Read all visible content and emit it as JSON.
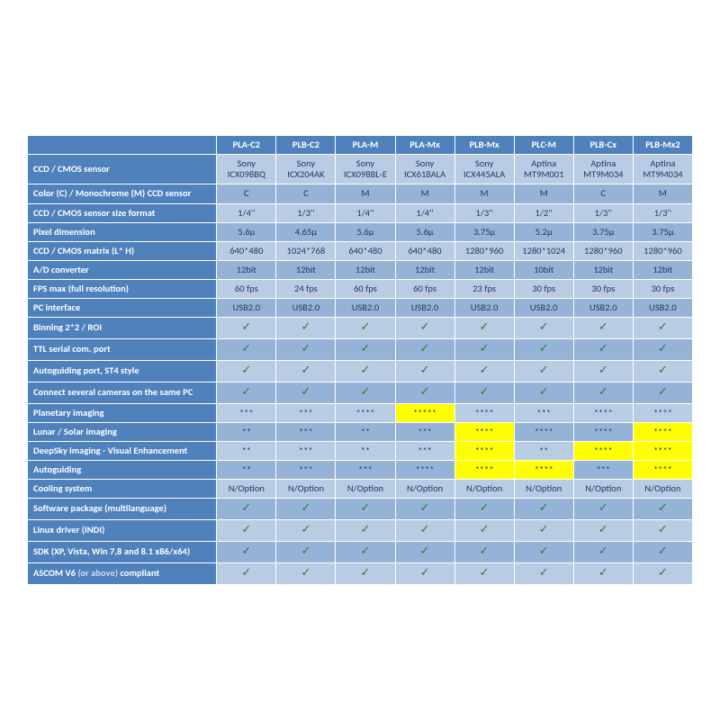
{
  "columns": [
    "PLA-C2",
    "PLB-C2",
    "PLA-M",
    "PLA-Mx",
    "PLB-Mx",
    "PLC-M",
    "PLB-Cx",
    "PLB-Mx2"
  ],
  "check": "✓",
  "rows": [
    {
      "label": "CCD / CMOS sensor",
      "shade": "lt",
      "cells": [
        {
          "t": "Sony ICX098BQ"
        },
        {
          "t": "Sony ICX204AK"
        },
        {
          "t": "Sony ICX098BL-E"
        },
        {
          "t": "Sony ICX618ALA"
        },
        {
          "t": "Sony ICX445ALA"
        },
        {
          "t": "Aptina MT9M001"
        },
        {
          "t": "Aptina MT9M034"
        },
        {
          "t": "Aptina MT9M034"
        }
      ]
    },
    {
      "label": "Color (C) / Monochrome (M) CCD sensor",
      "shade": "dk",
      "cells": [
        {
          "t": "C"
        },
        {
          "t": "C"
        },
        {
          "t": "M"
        },
        {
          "t": "M"
        },
        {
          "t": "M"
        },
        {
          "t": "M"
        },
        {
          "t": "C"
        },
        {
          "t": "M"
        }
      ]
    },
    {
      "label": "CCD / CMOS sensor size format",
      "shade": "lt",
      "cells": [
        {
          "t": "1/4''"
        },
        {
          "t": "1/3''"
        },
        {
          "t": "1/4''"
        },
        {
          "t": "1/4''"
        },
        {
          "t": "1/3''"
        },
        {
          "t": "1/2''"
        },
        {
          "t": "1/3''"
        },
        {
          "t": "1/3''"
        }
      ]
    },
    {
      "label": "Pixel dimension",
      "shade": "dk",
      "cells": [
        {
          "t": "5.6µ"
        },
        {
          "t": "4.65µ"
        },
        {
          "t": "5.6µ"
        },
        {
          "t": "5.6µ"
        },
        {
          "t": "3.75µ"
        },
        {
          "t": "5.2µ"
        },
        {
          "t": "3.75µ"
        },
        {
          "t": "3.75µ"
        }
      ]
    },
    {
      "label": "CCD / CMOS matrix (L* H)",
      "shade": "lt",
      "cells": [
        {
          "t": "640*480"
        },
        {
          "t": "1024*768"
        },
        {
          "t": "640*480"
        },
        {
          "t": "640*480"
        },
        {
          "t": "1280*960"
        },
        {
          "t": "1280*1024"
        },
        {
          "t": "1280*960"
        },
        {
          "t": "1280*960"
        }
      ]
    },
    {
      "label": "A/D converter",
      "shade": "dk",
      "cells": [
        {
          "t": "12bit"
        },
        {
          "t": "12bit"
        },
        {
          "t": "12bit"
        },
        {
          "t": "12bit"
        },
        {
          "t": "12bit"
        },
        {
          "t": "10bit"
        },
        {
          "t": "12bit"
        },
        {
          "t": "12bit"
        }
      ]
    },
    {
      "label": "FPS max (full resolution)",
      "shade": "lt",
      "cells": [
        {
          "t": "60 fps"
        },
        {
          "t": "24 fps"
        },
        {
          "t": "60 fps"
        },
        {
          "t": "60 fps"
        },
        {
          "t": "23 fps"
        },
        {
          "t": "30 fps"
        },
        {
          "t": "30 fps"
        },
        {
          "t": "30 fps"
        }
      ]
    },
    {
      "label": "PC interface",
      "shade": "dk",
      "cells": [
        {
          "t": "USB2.0"
        },
        {
          "t": "USB2.0"
        },
        {
          "t": "USB2.0"
        },
        {
          "t": "USB2.0"
        },
        {
          "t": "USB2.0"
        },
        {
          "t": "USB2.0"
        },
        {
          "t": "USB2.0"
        },
        {
          "t": "USB2.0"
        }
      ]
    },
    {
      "label": "Binning 2*2 / ROI",
      "shade": "lt",
      "cells": [
        {
          "c": true
        },
        {
          "c": true
        },
        {
          "c": true
        },
        {
          "c": true
        },
        {
          "c": true
        },
        {
          "c": true
        },
        {
          "c": true
        },
        {
          "c": true
        }
      ]
    },
    {
      "label": "TTL serial com. port",
      "shade": "dk",
      "cells": [
        {
          "c": true
        },
        {
          "c": true
        },
        {
          "c": true
        },
        {
          "c": true
        },
        {
          "c": true
        },
        {
          "c": true
        },
        {
          "c": true
        },
        {
          "c": true
        }
      ]
    },
    {
      "label": "Autoguiding port, ST4 style",
      "shade": "lt",
      "cells": [
        {
          "c": true
        },
        {
          "c": true
        },
        {
          "c": true
        },
        {
          "c": true
        },
        {
          "c": true
        },
        {
          "c": true
        },
        {
          "c": true
        },
        {
          "c": true
        }
      ]
    },
    {
      "label": "Connect several cameras on the same PC",
      "shade": "dk",
      "cells": [
        {
          "c": true
        },
        {
          "c": true
        },
        {
          "c": true
        },
        {
          "c": true
        },
        {
          "c": true
        },
        {
          "c": true
        },
        {
          "c": true
        },
        {
          "c": true
        }
      ]
    },
    {
      "label": "Planetary imaging",
      "shade": "lt",
      "cells": [
        {
          "t": "***"
        },
        {
          "t": "***"
        },
        {
          "t": "****"
        },
        {
          "t": "*****",
          "hl": true
        },
        {
          "t": "****"
        },
        {
          "t": "***"
        },
        {
          "t": "****"
        },
        {
          "t": "****"
        }
      ]
    },
    {
      "label": "Lunar / Solar imaging",
      "shade": "dk",
      "cells": [
        {
          "t": "**"
        },
        {
          "t": "***"
        },
        {
          "t": "**"
        },
        {
          "t": "***"
        },
        {
          "t": "****",
          "hl": true
        },
        {
          "t": "****"
        },
        {
          "t": "****"
        },
        {
          "t": "****",
          "hl": true
        }
      ]
    },
    {
      "label": "DeepSky imaging - Visual Enhancement",
      "shade": "lt",
      "cells": [
        {
          "t": "**"
        },
        {
          "t": "***"
        },
        {
          "t": "**"
        },
        {
          "t": "***"
        },
        {
          "t": "****",
          "hl": true
        },
        {
          "t": "**"
        },
        {
          "t": "****",
          "hl": true
        },
        {
          "t": "****",
          "hl": true
        }
      ]
    },
    {
      "label": "Autoguiding",
      "shade": "dk",
      "cells": [
        {
          "t": "**"
        },
        {
          "t": "***"
        },
        {
          "t": "***"
        },
        {
          "t": "****"
        },
        {
          "t": "****",
          "hl": true
        },
        {
          "t": "****",
          "hl": true
        },
        {
          "t": "***"
        },
        {
          "t": "****",
          "hl": true
        }
      ]
    },
    {
      "label": "Cooling system",
      "shade": "lt",
      "cells": [
        {
          "t": "N/Option"
        },
        {
          "t": "N/Option"
        },
        {
          "t": "N/Option"
        },
        {
          "t": "N/Option"
        },
        {
          "t": "N/Option"
        },
        {
          "t": "N/Option"
        },
        {
          "t": "N/Option"
        },
        {
          "t": "N/Option"
        }
      ]
    },
    {
      "label": "Software package (multilanguage)",
      "shade": "dk",
      "cells": [
        {
          "c": true
        },
        {
          "c": true
        },
        {
          "c": true
        },
        {
          "c": true
        },
        {
          "c": true
        },
        {
          "c": true
        },
        {
          "c": true
        },
        {
          "c": true
        }
      ]
    },
    {
      "label": "Linux driver (INDI)",
      "shade": "lt",
      "cells": [
        {
          "c": true
        },
        {
          "c": true
        },
        {
          "c": true
        },
        {
          "c": true
        },
        {
          "c": true
        },
        {
          "c": true
        },
        {
          "c": true
        },
        {
          "c": true
        }
      ]
    },
    {
      "label": "SDK (XP, Vista, Win 7,8 and 8.1 x86/x64)",
      "shade": "dk",
      "cells": [
        {
          "c": true
        },
        {
          "c": true
        },
        {
          "c": true
        },
        {
          "c": true
        },
        {
          "c": true
        },
        {
          "c": true
        },
        {
          "c": true
        },
        {
          "c": true
        }
      ]
    },
    {
      "label": "ASCOM V6 <span class=\"faint\">(or above)</span> compliant",
      "shade": "lt",
      "cells": [
        {
          "c": true
        },
        {
          "c": true
        },
        {
          "c": true
        },
        {
          "c": true
        },
        {
          "c": true
        },
        {
          "c": true
        },
        {
          "c": true
        },
        {
          "c": true
        }
      ]
    }
  ]
}
